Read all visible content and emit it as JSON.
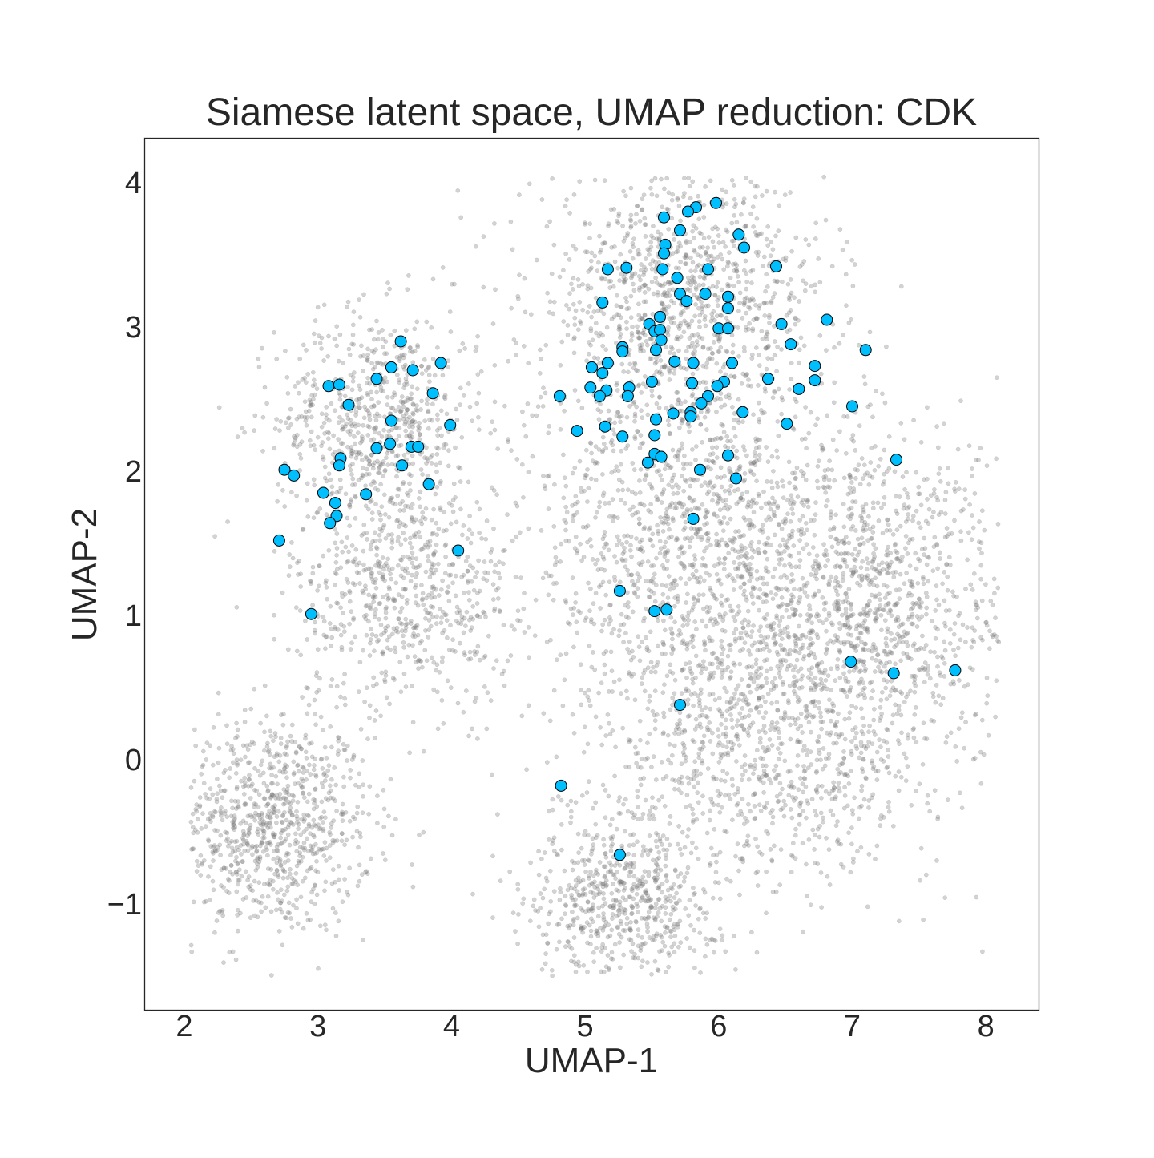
{
  "chart_data": {
    "type": "scatter",
    "title": "Siamese latent space, UMAP reduction: CDK",
    "xlabel": "UMAP-1",
    "ylabel": "UMAP-2",
    "xlim": [
      1.7,
      8.4
    ],
    "ylim": [
      -1.7,
      4.3
    ],
    "xticks": [
      2,
      3,
      4,
      5,
      6,
      7,
      8
    ],
    "yticks": [
      -1,
      0,
      1,
      2,
      3,
      4
    ],
    "ytick_labels": [
      "−1",
      "0",
      "1",
      "2",
      "3",
      "4"
    ],
    "grid": false,
    "legend": "none",
    "background_series": {
      "color": "#808080",
      "opacity": 0.35,
      "clusters": [
        {
          "cx": 2.65,
          "cy": -0.45,
          "sx": 0.38,
          "sy": 0.38,
          "n": 900
        },
        {
          "cx": 3.45,
          "cy": 2.35,
          "sx": 0.38,
          "sy": 0.38,
          "n": 700
        },
        {
          "cx": 3.65,
          "cy": 1.15,
          "sx": 0.42,
          "sy": 0.38,
          "n": 650
        },
        {
          "cx": 5.7,
          "cy": 3.2,
          "sx": 0.55,
          "sy": 0.45,
          "n": 1100
        },
        {
          "cx": 5.85,
          "cy": 1.5,
          "sx": 0.65,
          "sy": 0.65,
          "n": 1400
        },
        {
          "cx": 7.15,
          "cy": 1.1,
          "sx": 0.55,
          "sy": 0.6,
          "n": 1100
        },
        {
          "cx": 6.35,
          "cy": 0.1,
          "sx": 0.6,
          "sy": 0.5,
          "n": 900
        },
        {
          "cx": 5.3,
          "cy": -0.95,
          "sx": 0.35,
          "sy": 0.3,
          "n": 650
        }
      ]
    },
    "highlight_series": {
      "color": "#00bfff",
      "edge_color": "#000000",
      "points": [
        [
          3.62,
          2.9
        ],
        [
          3.55,
          2.72
        ],
        [
          3.71,
          2.7
        ],
        [
          3.92,
          2.75
        ],
        [
          3.08,
          2.59
        ],
        [
          3.16,
          2.6
        ],
        [
          3.44,
          2.64
        ],
        [
          3.86,
          2.54
        ],
        [
          3.23,
          2.46
        ],
        [
          3.55,
          2.35
        ],
        [
          3.99,
          2.32
        ],
        [
          3.44,
          2.16
        ],
        [
          3.54,
          2.19
        ],
        [
          3.7,
          2.17
        ],
        [
          3.75,
          2.17
        ],
        [
          3.17,
          2.09
        ],
        [
          3.16,
          2.04
        ],
        [
          3.63,
          2.04
        ],
        [
          2.75,
          2.01
        ],
        [
          2.82,
          1.97
        ],
        [
          3.83,
          1.91
        ],
        [
          3.04,
          1.85
        ],
        [
          3.36,
          1.84
        ],
        [
          3.13,
          1.78
        ],
        [
          3.14,
          1.69
        ],
        [
          3.09,
          1.64
        ],
        [
          2.71,
          1.52
        ],
        [
          4.05,
          1.45
        ],
        [
          2.95,
          1.01
        ],
        [
          5.98,
          3.86
        ],
        [
          5.83,
          3.83
        ],
        [
          5.77,
          3.8
        ],
        [
          5.59,
          3.76
        ],
        [
          5.71,
          3.67
        ],
        [
          6.15,
          3.64
        ],
        [
          5.6,
          3.57
        ],
        [
          6.19,
          3.55
        ],
        [
          5.59,
          3.51
        ],
        [
          5.17,
          3.4
        ],
        [
          5.31,
          3.41
        ],
        [
          5.58,
          3.4
        ],
        [
          5.92,
          3.4
        ],
        [
          6.43,
          3.42
        ],
        [
          5.69,
          3.34
        ],
        [
          5.71,
          3.23
        ],
        [
          5.9,
          3.23
        ],
        [
          6.07,
          3.21
        ],
        [
          5.76,
          3.18
        ],
        [
          5.13,
          3.17
        ],
        [
          6.07,
          3.13
        ],
        [
          6.81,
          3.05
        ],
        [
          5.56,
          3.07
        ],
        [
          5.48,
          3.02
        ],
        [
          6.47,
          3.02
        ],
        [
          6.0,
          2.99
        ],
        [
          6.07,
          2.99
        ],
        [
          5.52,
          2.97
        ],
        [
          5.56,
          2.98
        ],
        [
          5.57,
          2.91
        ],
        [
          6.54,
          2.88
        ],
        [
          5.28,
          2.86
        ],
        [
          5.28,
          2.83
        ],
        [
          5.53,
          2.84
        ],
        [
          7.1,
          2.84
        ],
        [
          5.17,
          2.75
        ],
        [
          5.67,
          2.76
        ],
        [
          5.81,
          2.75
        ],
        [
          6.1,
          2.75
        ],
        [
          5.05,
          2.72
        ],
        [
          6.72,
          2.73
        ],
        [
          5.13,
          2.68
        ],
        [
          6.72,
          2.63
        ],
        [
          6.37,
          2.64
        ],
        [
          5.5,
          2.62
        ],
        [
          5.8,
          2.61
        ],
        [
          6.04,
          2.62
        ],
        [
          5.99,
          2.59
        ],
        [
          5.04,
          2.58
        ],
        [
          5.33,
          2.58
        ],
        [
          5.16,
          2.56
        ],
        [
          6.6,
          2.57
        ],
        [
          4.81,
          2.52
        ],
        [
          5.11,
          2.52
        ],
        [
          5.32,
          2.52
        ],
        [
          5.92,
          2.52
        ],
        [
          5.87,
          2.47
        ],
        [
          7.0,
          2.45
        ],
        [
          5.66,
          2.4
        ],
        [
          5.79,
          2.41
        ],
        [
          5.79,
          2.38
        ],
        [
          6.18,
          2.41
        ],
        [
          5.53,
          2.36
        ],
        [
          5.15,
          2.31
        ],
        [
          6.51,
          2.33
        ],
        [
          4.94,
          2.28
        ],
        [
          5.28,
          2.24
        ],
        [
          5.52,
          2.25
        ],
        [
          5.52,
          2.12
        ],
        [
          5.57,
          2.1
        ],
        [
          6.07,
          2.11
        ],
        [
          5.47,
          2.06
        ],
        [
          7.33,
          2.08
        ],
        [
          5.86,
          2.01
        ],
        [
          6.13,
          1.95
        ],
        [
          5.81,
          1.67
        ],
        [
          5.26,
          1.17
        ],
        [
          5.52,
          1.03
        ],
        [
          5.61,
          1.04
        ],
        [
          6.99,
          0.68
        ],
        [
          7.31,
          0.6
        ],
        [
          7.77,
          0.62
        ],
        [
          5.71,
          0.38
        ],
        [
          4.82,
          -0.18
        ],
        [
          5.26,
          -0.66
        ]
      ]
    }
  }
}
